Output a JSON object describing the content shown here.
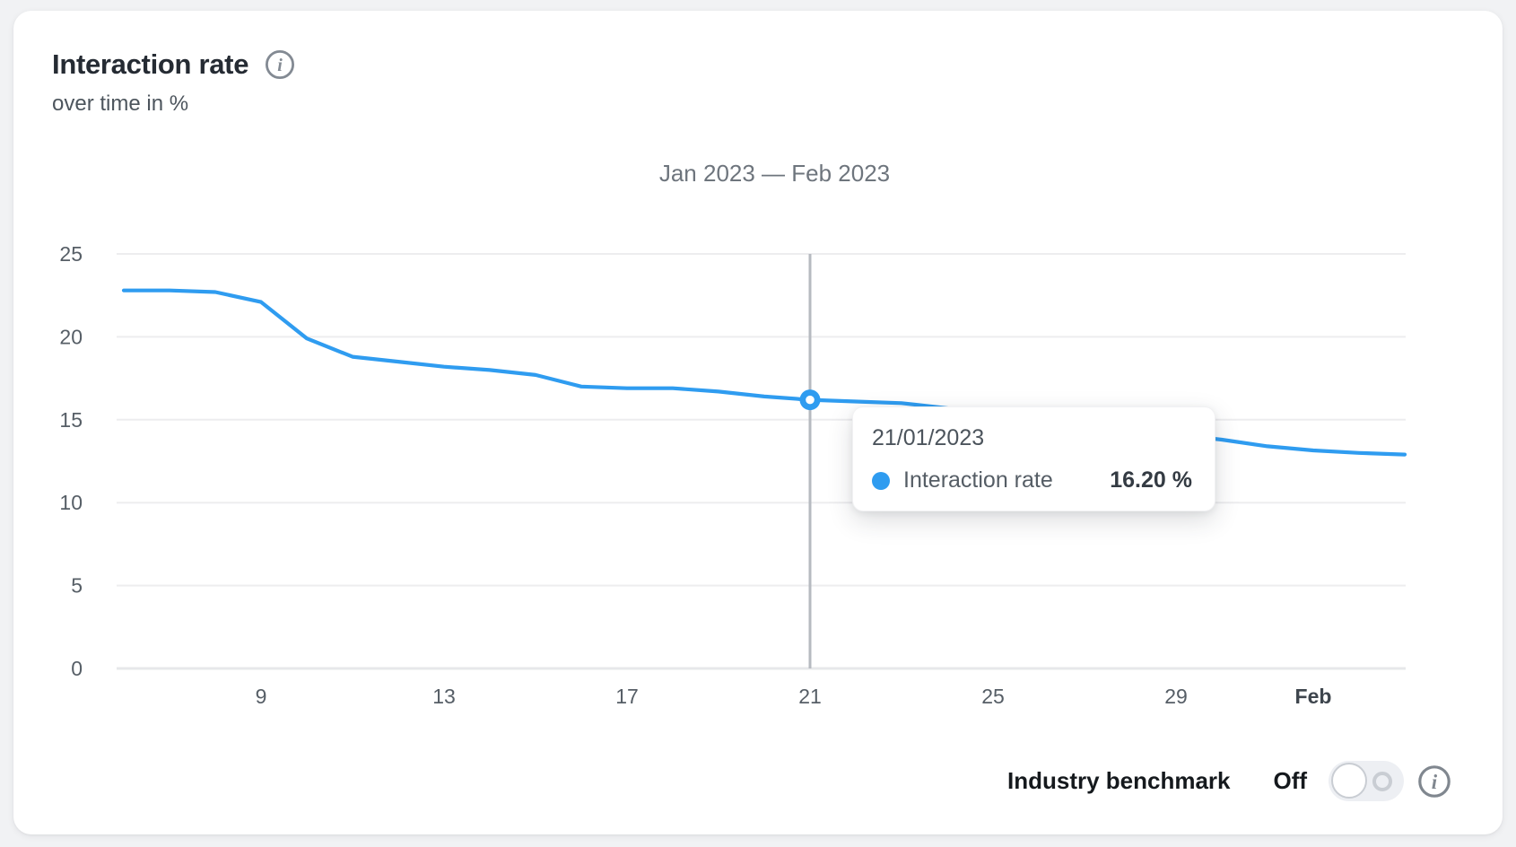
{
  "header": {
    "title": "Interaction rate",
    "subtitle": "over time in %",
    "info_icon": "info-circle"
  },
  "chart_data": {
    "type": "line",
    "title": "Jan 2023 — Feb 2023",
    "xlabel": "",
    "ylabel": "",
    "ylim": [
      0,
      25
    ],
    "yticks": [
      0,
      5,
      10,
      15,
      20,
      25
    ],
    "grid": true,
    "legend_position": "none",
    "x": [
      "06/01",
      "07/01",
      "08/01",
      "09/01",
      "10/01",
      "11/01",
      "12/01",
      "13/01",
      "14/01",
      "15/01",
      "16/01",
      "17/01",
      "18/01",
      "19/01",
      "20/01",
      "21/01",
      "22/01",
      "23/01",
      "24/01",
      "25/01",
      "26/01",
      "27/01",
      "28/01",
      "29/01",
      "30/01",
      "31/01",
      "01/02",
      "02/02",
      "03/02"
    ],
    "series": [
      {
        "name": "Interaction rate",
        "color": "#2f9cf0",
        "values": [
          22.8,
          22.8,
          22.7,
          22.1,
          19.9,
          18.8,
          18.5,
          18.2,
          18.0,
          17.7,
          17.0,
          16.9,
          16.9,
          16.7,
          16.4,
          16.2,
          16.1,
          16.0,
          15.7,
          15.4,
          15.1,
          14.8,
          14.4,
          14.1,
          13.8,
          13.4,
          13.15,
          13.0,
          12.9
        ]
      }
    ],
    "xticks": [
      {
        "label": "9",
        "index": 3,
        "bold": false
      },
      {
        "label": "13",
        "index": 7,
        "bold": false
      },
      {
        "label": "17",
        "index": 11,
        "bold": false
      },
      {
        "label": "21",
        "index": 15,
        "bold": false
      },
      {
        "label": "25",
        "index": 19,
        "bold": false
      },
      {
        "label": "29",
        "index": 23,
        "bold": false
      },
      {
        "label": "Feb",
        "index": 26,
        "bold": true
      }
    ],
    "highlight": {
      "index": 15,
      "date": "21/01/2023",
      "value": 16.2
    }
  },
  "tooltip": {
    "date": "21/01/2023",
    "series_label": "Interaction rate",
    "value": "16.20 %",
    "dot_color": "#2f9cf0"
  },
  "benchmark": {
    "label": "Industry benchmark",
    "state": "Off",
    "info_icon": "info-circle"
  },
  "colors": {
    "accent_blue": "#2f9cf0",
    "gridline": "#ededef",
    "zero_line": "#e7e8ea",
    "crosshair": "#b6bac0",
    "card_bg": "#ffffff",
    "page_bg": "#f1f2f4"
  }
}
